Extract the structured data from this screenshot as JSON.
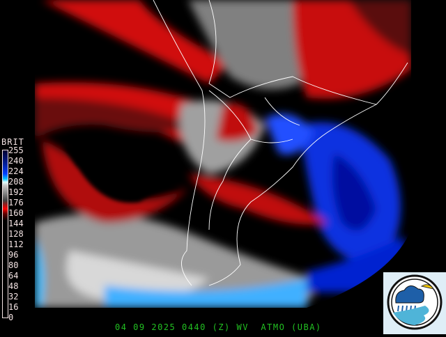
{
  "colorbar": {
    "title": "BRIT",
    "labels": [
      "255",
      "240",
      "224",
      "208",
      "192",
      "176",
      "160",
      "144",
      "128",
      "112",
      "96",
      "80",
      "64",
      "48",
      "32",
      "16",
      "0"
    ]
  },
  "footer": {
    "caption": "04 09 2025 0440 (Z) WV  ATMO (UBA)"
  },
  "logo": {
    "name": "atmosphere-weather-logo"
  },
  "colors": {
    "caption": "#22c022",
    "dry_red": "#e00000",
    "moist_blue": "#0020c0",
    "cyan": "#40d0ff"
  }
}
